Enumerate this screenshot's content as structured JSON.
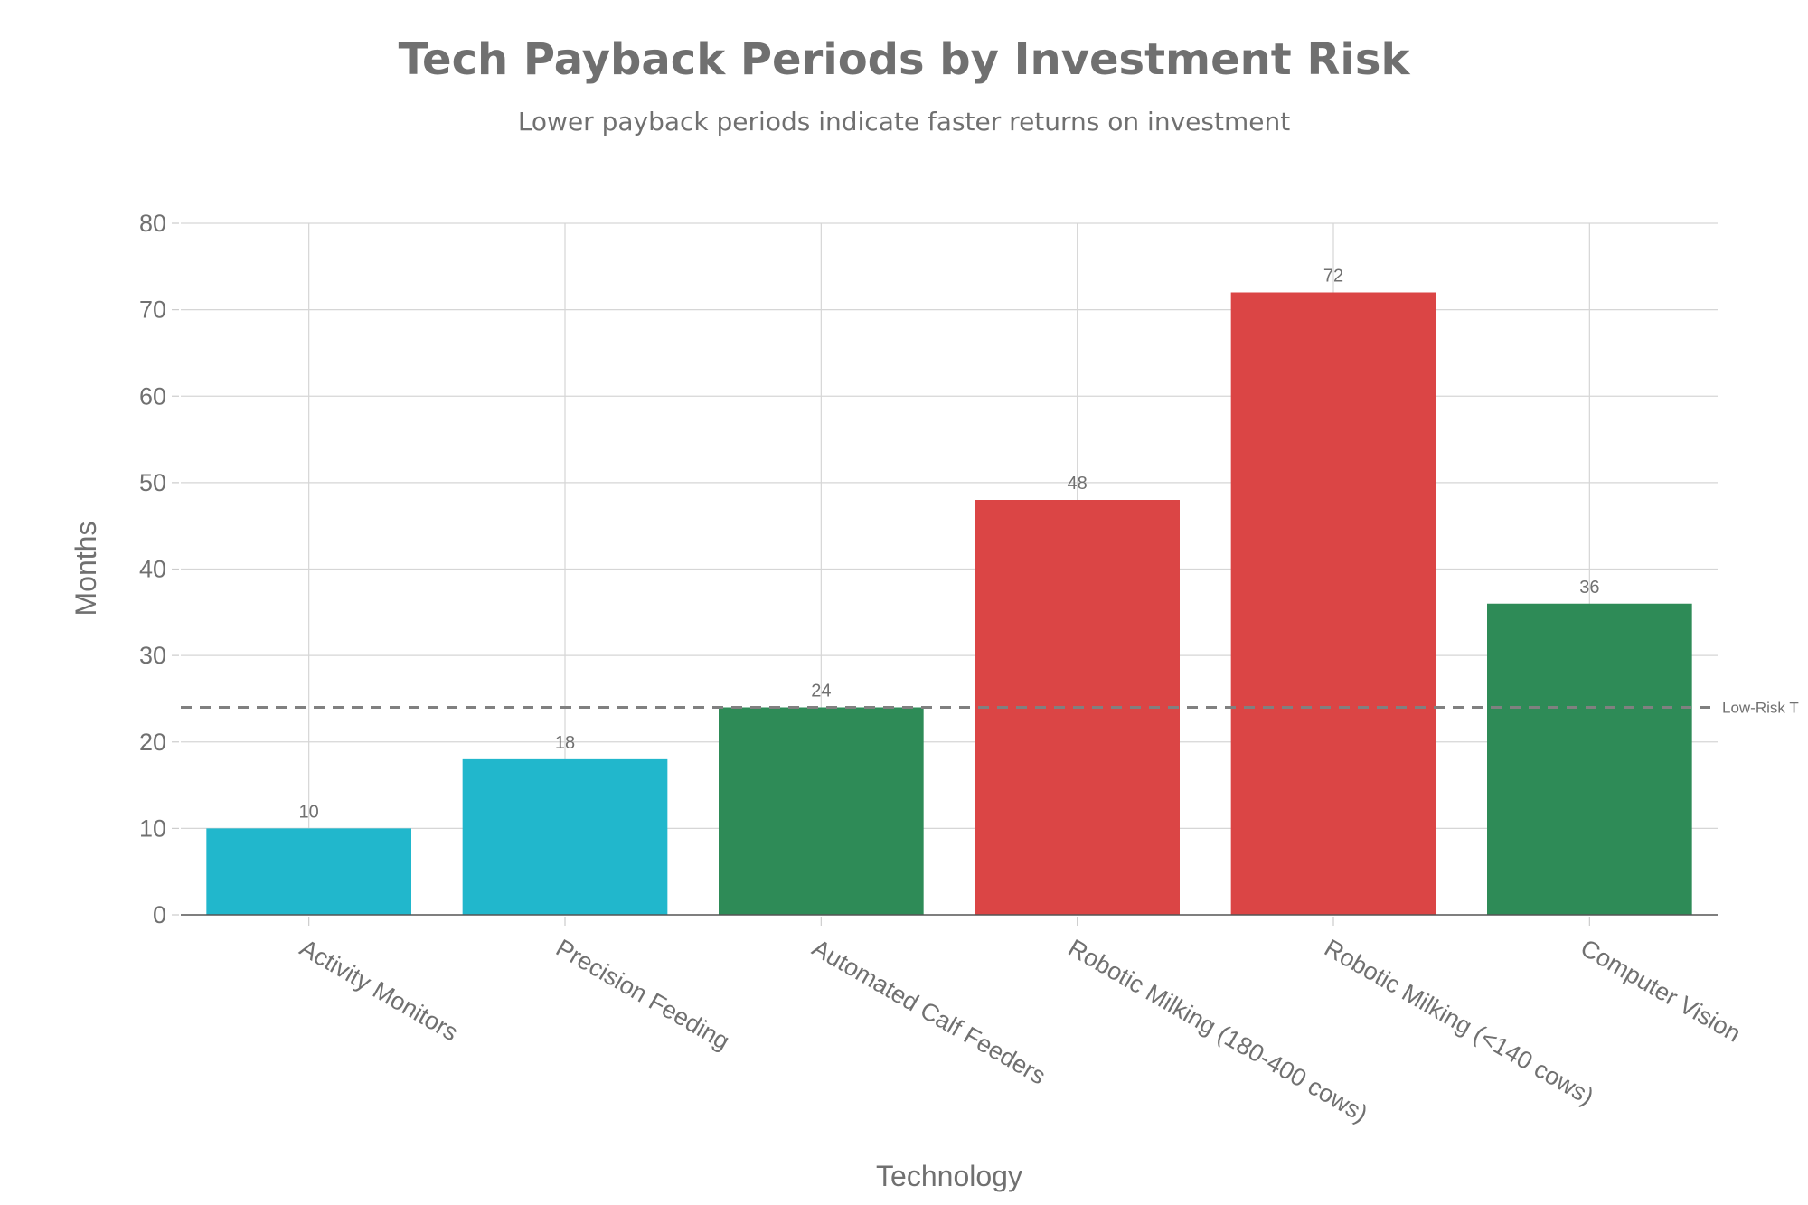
{
  "chart_data": {
    "type": "bar",
    "title": "Tech Payback Periods by Investment Risk",
    "subtitle": "Lower payback periods indicate faster returns on investment",
    "xlabel": "Technology",
    "ylabel": "Months",
    "ylim": [
      0,
      80
    ],
    "yticks": [
      "0",
      "10",
      "20",
      "30",
      "40",
      "50",
      "60",
      "70",
      "80"
    ],
    "categories": [
      "Activity Monitors",
      "Precision Feeding",
      "Automated Calf Feeders",
      "Robotic Milking (180-400 cows)",
      "Robotic Milking (<140 cows)",
      "Computer Vision"
    ],
    "values": [
      10,
      18,
      24,
      48,
      72,
      36
    ],
    "value_labels": [
      "10",
      "18",
      "24",
      "48",
      "72",
      "36"
    ],
    "bar_colors": [
      "#21b7cc",
      "#21b7cc",
      "#2e8b57",
      "#db4545",
      "#db4545",
      "#2e8b57"
    ],
    "grid": true,
    "reference_line": {
      "y": 24,
      "label": "Low-Risk T",
      "color": "#808080",
      "style": "dashed"
    }
  }
}
